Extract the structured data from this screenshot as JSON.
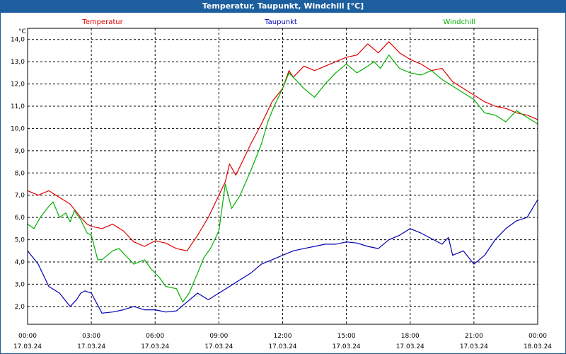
{
  "window": {
    "title": "Temperatur, Taupunkt, Windchill [°C]"
  },
  "colors": {
    "titlebar": "#1d5f9e",
    "temperatur": "#e00000",
    "taupunkt": "#0000b0",
    "windchill": "#00b000",
    "grid": "#000000"
  },
  "chart_data": {
    "type": "line",
    "title": "Temperatur, Taupunkt, Windchill [°C]",
    "ylabel": "°C",
    "xlabel": "",
    "xlim": [
      0,
      24
    ],
    "ylim": [
      1.2,
      14.5
    ],
    "yticks": [
      2.0,
      3.0,
      4.0,
      5.0,
      6.0,
      7.0,
      8.0,
      9.0,
      10.0,
      11.0,
      12.0,
      13.0,
      14.0
    ],
    "ytick_labels": [
      "2,0",
      "3,0",
      "4,0",
      "5,0",
      "6,0",
      "7,0",
      "8,0",
      "9,0",
      "10,0",
      "11,0",
      "12,0",
      "13,0",
      "14,0"
    ],
    "xticks": [
      {
        "x": 0,
        "time": "00:00",
        "date": "17.03.24"
      },
      {
        "x": 3,
        "time": "03:00",
        "date": "17.03.24"
      },
      {
        "x": 6,
        "time": "06:00",
        "date": "17.03.24"
      },
      {
        "x": 9,
        "time": "09:00",
        "date": "17.03.24"
      },
      {
        "x": 12,
        "time": "12:00",
        "date": "17.03.24"
      },
      {
        "x": 15,
        "time": "15:00",
        "date": "17.03.24"
      },
      {
        "x": 18,
        "time": "18:00",
        "date": "17.03.24"
      },
      {
        "x": 21,
        "time": "21:00",
        "date": "17.03.24"
      },
      {
        "x": 24,
        "time": "00:00",
        "date": "18.03.24"
      }
    ],
    "grid": true,
    "legend": [
      "Temperatur",
      "Taupunkt",
      "Windchill"
    ],
    "series": [
      {
        "name": "Temperatur",
        "x": [
          0,
          0.5,
          1,
          1.5,
          2,
          2.5,
          2.8,
          3,
          3.5,
          4,
          4.5,
          5,
          5.5,
          6,
          6.5,
          7,
          7.5,
          8,
          8.5,
          9,
          9.3,
          9.5,
          9.8,
          10,
          10.5,
          11,
          11.5,
          12,
          12.3,
          12.5,
          13,
          13.5,
          14,
          14.5,
          15,
          15.5,
          16,
          16.5,
          17,
          17.5,
          18,
          18.5,
          19,
          19.5,
          20,
          20.5,
          21,
          21.5,
          22,
          22.5,
          23,
          23.5,
          24
        ],
        "values": [
          7.2,
          7.0,
          7.2,
          6.9,
          6.6,
          6.0,
          5.7,
          5.6,
          5.5,
          5.7,
          5.4,
          4.9,
          4.7,
          4.95,
          4.85,
          4.6,
          4.5,
          5.2,
          6.0,
          7.0,
          7.6,
          8.4,
          7.9,
          8.3,
          9.3,
          10.2,
          11.2,
          11.8,
          12.6,
          12.3,
          12.8,
          12.6,
          12.8,
          13.0,
          13.2,
          13.3,
          13.8,
          13.4,
          13.9,
          13.4,
          13.1,
          12.9,
          12.6,
          12.7,
          12.1,
          11.8,
          11.5,
          11.2,
          11.0,
          10.9,
          10.7,
          10.6,
          10.4
        ]
      },
      {
        "name": "Taupunkt",
        "x": [
          0,
          0.5,
          1,
          1.5,
          2,
          2.3,
          2.5,
          2.7,
          3,
          3.5,
          4,
          4.5,
          5,
          5.5,
          6,
          6.5,
          7,
          7.5,
          8,
          8.5,
          9,
          9.5,
          10,
          10.5,
          11,
          11.5,
          12,
          12.5,
          13,
          13.5,
          14,
          14.5,
          15,
          15.5,
          16,
          16.5,
          17,
          17.5,
          18,
          18.5,
          19,
          19.5,
          19.8,
          20,
          20.5,
          21,
          21.5,
          22,
          22.5,
          23,
          23.5,
          24
        ],
        "values": [
          4.5,
          3.9,
          2.9,
          2.6,
          2.0,
          2.3,
          2.6,
          2.7,
          2.6,
          1.7,
          1.75,
          1.85,
          2.0,
          1.85,
          1.85,
          1.75,
          1.8,
          2.2,
          2.6,
          2.3,
          2.6,
          2.9,
          3.2,
          3.5,
          3.9,
          4.1,
          4.3,
          4.5,
          4.6,
          4.7,
          4.8,
          4.8,
          4.9,
          4.85,
          4.7,
          4.6,
          5.0,
          5.2,
          5.5,
          5.3,
          5.05,
          4.8,
          5.1,
          4.3,
          4.5,
          3.9,
          4.3,
          5.0,
          5.5,
          5.85,
          6.0,
          6.8
        ]
      },
      {
        "name": "Windchill",
        "x": [
          0,
          0.3,
          0.6,
          1,
          1.2,
          1.5,
          1.8,
          2,
          2.2,
          2.5,
          2.8,
          3,
          3.3,
          3.5,
          4,
          4.3,
          4.6,
          5,
          5.5,
          5.8,
          6.2,
          6.5,
          7,
          7.3,
          7.6,
          8,
          8.3,
          8.6,
          9,
          9.3,
          9.6,
          10,
          10.5,
          11,
          11.3,
          11.6,
          12,
          12.3,
          12.6,
          13,
          13.5,
          14,
          14.5,
          15,
          15.5,
          16,
          16.3,
          16.6,
          17,
          17.5,
          18,
          18.5,
          19,
          19.5,
          20,
          20.5,
          21,
          21.5,
          22,
          22.5,
          23,
          23.5,
          24
        ],
        "values": [
          5.7,
          5.5,
          6.0,
          6.5,
          6.7,
          6.0,
          6.2,
          5.8,
          6.3,
          5.9,
          5.3,
          5.2,
          4.1,
          4.1,
          4.5,
          4.6,
          4.3,
          3.9,
          4.1,
          3.7,
          3.3,
          2.9,
          2.8,
          2.2,
          2.6,
          3.5,
          4.2,
          4.6,
          5.4,
          7.5,
          6.4,
          7.0,
          8.1,
          9.3,
          10.3,
          11.0,
          11.8,
          12.5,
          12.2,
          11.8,
          11.4,
          12.0,
          12.5,
          12.9,
          12.5,
          12.8,
          13.0,
          12.7,
          13.3,
          12.7,
          12.5,
          12.4,
          12.6,
          12.2,
          11.9,
          11.6,
          11.3,
          10.7,
          10.6,
          10.3,
          10.8,
          10.5,
          10.2
        ]
      }
    ]
  }
}
